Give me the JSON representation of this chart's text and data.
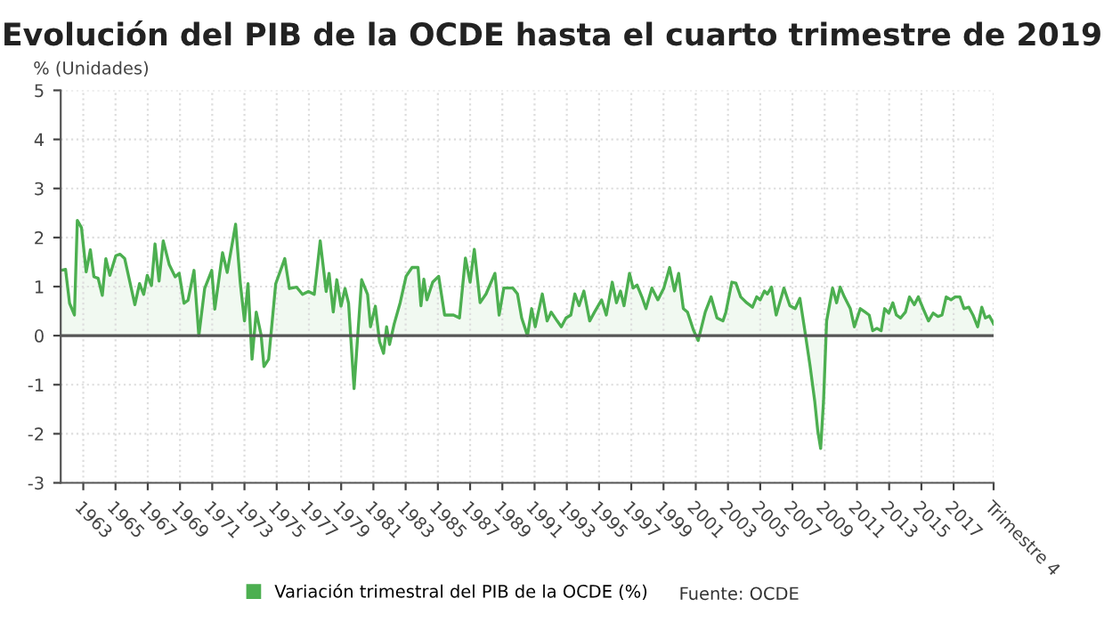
{
  "chart_data": {
    "type": "area",
    "title": "Evolución del PIB de la OCDE hasta el cuarto trimestre de 2019",
    "ylabel": "% (Unidades)",
    "annotations": [
      "Fuente: OCDE"
    ],
    "x": [
      1961.6,
      1961.9,
      1962.15,
      1962.45,
      1962.63,
      1962.89,
      1963.18,
      1963.44,
      1963.66,
      1963.92,
      1964.18,
      1964.4,
      1964.65,
      1965.02,
      1965.28,
      1965.57,
      1965.94,
      1966.2,
      1966.49,
      1966.75,
      1966.97,
      1967.23,
      1967.45,
      1967.7,
      1967.96,
      1968.33,
      1968.7,
      1968.95,
      1969.25,
      1969.5,
      1969.87,
      1970.17,
      1970.53,
      1970.97,
      1971.16,
      1971.64,
      1971.93,
      1972.45,
      1972.74,
      1973.0,
      1973.22,
      1973.47,
      1973.73,
      1974.03,
      1974.21,
      1974.5,
      1974.94,
      1975.5,
      1975.79,
      1976.23,
      1976.6,
      1976.97,
      1977.33,
      1977.7,
      1978.07,
      1978.25,
      1978.51,
      1978.73,
      1978.99,
      1979.24,
      1979.46,
      1979.8,
      1980.27,
      1980.64,
      1980.82,
      1981.12,
      1981.38,
      1981.63,
      1981.82,
      1982.0,
      1982.29,
      1982.66,
      1983.03,
      1983.4,
      1983.77,
      1983.95,
      1984.13,
      1984.32,
      1984.68,
      1985.05,
      1985.42,
      1985.97,
      1986.34,
      1986.71,
      1987.0,
      1987.26,
      1987.62,
      1987.99,
      1988.54,
      1988.8,
      1989.09,
      1989.65,
      1989.94,
      1990.2,
      1990.56,
      1990.82,
      1991.04,
      1991.48,
      1991.78,
      1992.03,
      1992.4,
      1992.66,
      1992.95,
      1993.25,
      1993.5,
      1993.76,
      1994.06,
      1994.42,
      1994.72,
      1995.16,
      1995.45,
      1995.82,
      1996.08,
      1996.33,
      1996.55,
      1996.89,
      1997.11,
      1997.36,
      1997.66,
      1997.91,
      1998.28,
      1998.65,
      1999.02,
      1999.38,
      1999.68,
      1999.94,
      2000.23,
      2000.49,
      2000.85,
      2001.15,
      2001.59,
      2001.95,
      2002.32,
      2002.69,
      2002.87,
      2003.24,
      2003.49,
      2003.79,
      2004.16,
      2004.52,
      2004.78,
      2005.0,
      2005.26,
      2005.44,
      2005.7,
      2005.99,
      2006.47,
      2006.84,
      2007.17,
      2007.46,
      2007.76,
      2008.09,
      2008.38,
      2008.57,
      2008.75,
      2008.93,
      2009.12,
      2009.49,
      2009.74,
      2009.96,
      2010.22,
      2010.59,
      2010.84,
      2011.21,
      2011.51,
      2011.76,
      2011.98,
      2012.24,
      2012.5,
      2012.72,
      2012.98,
      2013.23,
      2013.45,
      2013.71,
      2014.01,
      2014.26,
      2014.56,
      2014.81,
      2015.11,
      2015.44,
      2015.73,
      2016.03,
      2016.28,
      2016.54,
      2016.84,
      2017.09,
      2017.39,
      2017.64,
      2017.94,
      2018.2,
      2018.49,
      2018.75,
      2018.97,
      2019.22,
      2019.48
    ],
    "series": [
      {
        "name": "Variación trimestral del PIB de la OCDE (%)",
        "color": "#4caf50",
        "values": [
          1.33,
          1.35,
          0.66,
          0.42,
          2.35,
          2.2,
          1.3,
          1.75,
          1.2,
          1.17,
          0.82,
          1.57,
          1.23,
          1.63,
          1.66,
          1.57,
          1.02,
          0.63,
          1.06,
          0.84,
          1.23,
          1.02,
          1.87,
          1.11,
          1.93,
          1.45,
          1.2,
          1.27,
          0.66,
          0.72,
          1.33,
          0.0,
          0.96,
          1.33,
          0.54,
          1.69,
          1.29,
          2.27,
          1.08,
          0.3,
          1.06,
          -0.48,
          0.48,
          0.02,
          -0.63,
          -0.48,
          1.06,
          1.57,
          0.96,
          0.99,
          0.84,
          0.9,
          0.84,
          1.93,
          0.9,
          1.27,
          0.48,
          1.14,
          0.6,
          0.96,
          0.66,
          -1.08,
          1.14,
          0.84,
          0.18,
          0.6,
          -0.12,
          -0.36,
          0.18,
          -0.18,
          0.24,
          0.67,
          1.21,
          1.39,
          1.39,
          0.61,
          1.15,
          0.73,
          1.09,
          1.21,
          0.42,
          0.42,
          0.36,
          1.58,
          1.09,
          1.76,
          0.67,
          0.85,
          1.27,
          0.42,
          0.97,
          0.97,
          0.85,
          0.36,
          0.0,
          0.55,
          0.18,
          0.85,
          0.3,
          0.48,
          0.3,
          0.18,
          0.36,
          0.42,
          0.85,
          0.61,
          0.91,
          0.3,
          0.48,
          0.73,
          0.42,
          1.09,
          0.67,
          0.91,
          0.61,
          1.27,
          0.97,
          1.03,
          0.79,
          0.55,
          0.97,
          0.73,
          0.97,
          1.39,
          0.91,
          1.27,
          0.55,
          0.48,
          0.12,
          -0.1,
          0.48,
          0.79,
          0.36,
          0.3,
          0.48,
          1.09,
          1.07,
          0.79,
          0.67,
          0.58,
          0.79,
          0.73,
          0.91,
          0.85,
          0.99,
          0.42,
          0.97,
          0.61,
          0.55,
          0.76,
          0.12,
          -0.61,
          -1.33,
          -1.94,
          -2.3,
          -1.33,
          0.3,
          0.97,
          0.67,
          0.99,
          0.79,
          0.55,
          0.18,
          0.55,
          0.48,
          0.42,
          0.1,
          0.15,
          0.1,
          0.55,
          0.46,
          0.67,
          0.42,
          0.36,
          0.48,
          0.79,
          0.63,
          0.79,
          0.55,
          0.3,
          0.46,
          0.39,
          0.42,
          0.79,
          0.73,
          0.79,
          0.79,
          0.55,
          0.58,
          0.42,
          0.18,
          0.58,
          0.36,
          0.4,
          0.24
        ]
      }
    ],
    "xlim": [
      1961.6,
      2019.48
    ],
    "xticks": [
      1963,
      1965,
      1967,
      1969,
      1971,
      1973,
      1975,
      1977,
      1979,
      1981,
      1983,
      1985,
      1987,
      1989,
      1991,
      1993,
      1995,
      1997,
      1999,
      2001,
      2003,
      2005,
      2007,
      2009,
      2011,
      2013,
      2015,
      2017,
      {
        "value": 2019.48,
        "label": "Trimestre 4"
      }
    ],
    "ylim": [
      -3,
      5
    ],
    "yticks": [
      -3,
      -2,
      -1,
      0,
      1,
      2,
      3,
      4,
      5
    ],
    "ref_lines": [
      {
        "axis": "y",
        "value": 0,
        "color": "#555555"
      }
    ],
    "grid": true,
    "legend": "bottom"
  }
}
